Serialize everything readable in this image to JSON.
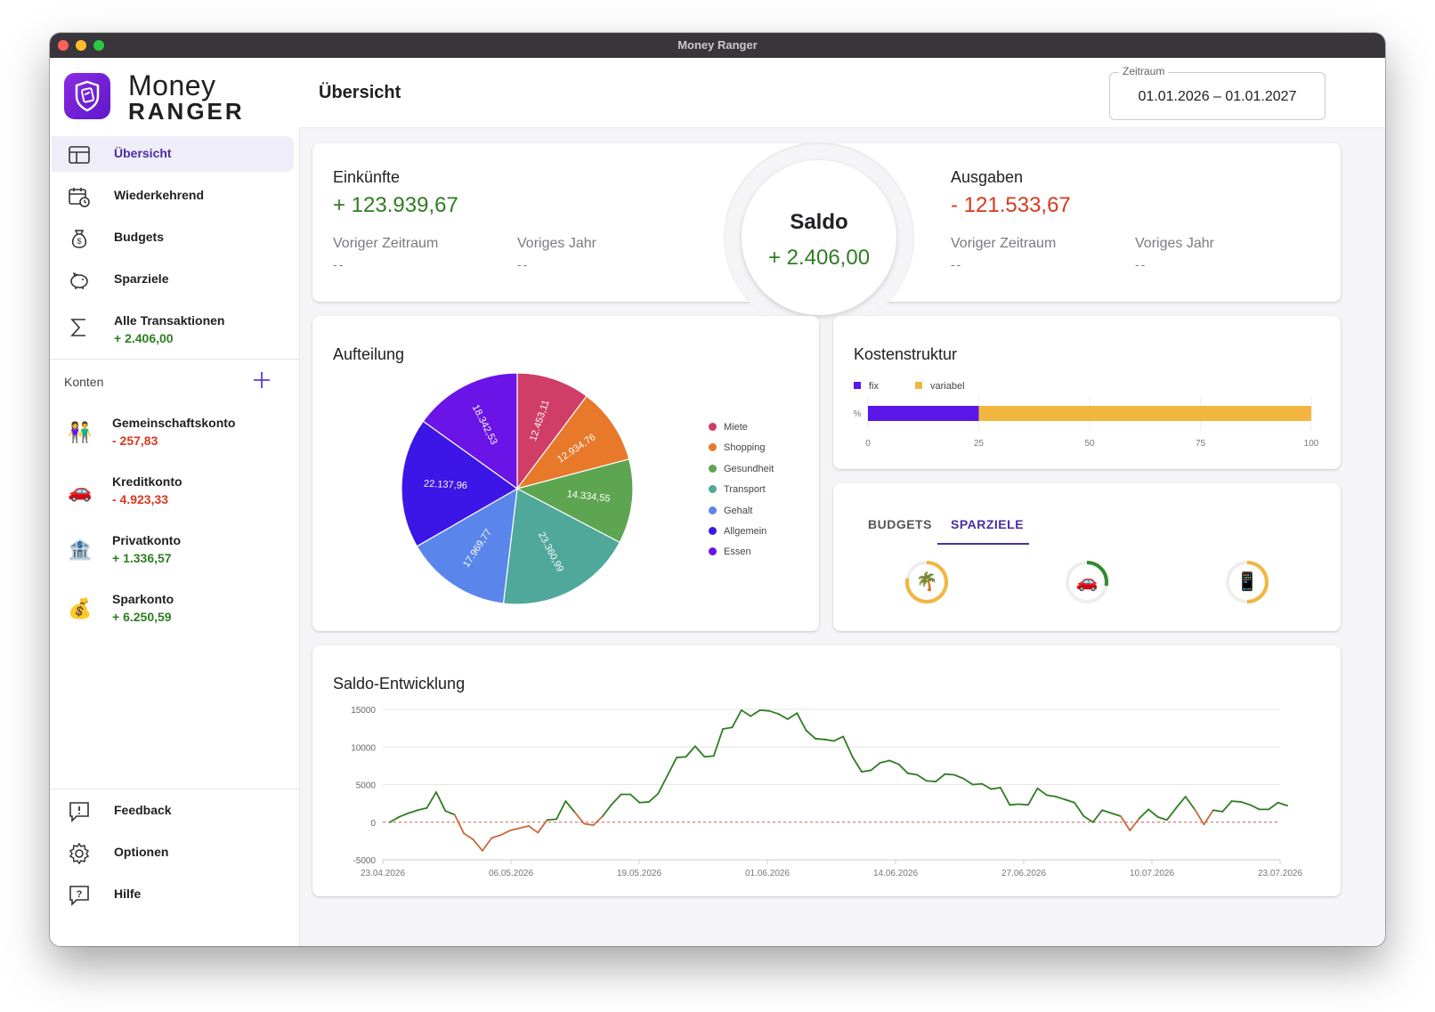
{
  "window": {
    "title": "Money Ranger"
  },
  "logo": {
    "line1": "Money",
    "line2": "RANGER"
  },
  "sidebar": {
    "nav": [
      {
        "label": "Übersicht",
        "icon": "dashboard-icon"
      },
      {
        "label": "Wiederkehrend",
        "icon": "recurring-calendar-icon"
      },
      {
        "label": "Budgets",
        "icon": "money-bag-icon"
      },
      {
        "label": "Sparziele",
        "icon": "piggy-bank-icon"
      },
      {
        "label": "Alle Transaktionen",
        "sub": "+ 2.406,00",
        "icon": "sigma-icon"
      }
    ],
    "accounts_label": "Konten",
    "accounts": [
      {
        "name": "Gemeinschaftskonto",
        "balance": "- 257,83",
        "emoji": "👫",
        "sign": "neg"
      },
      {
        "name": "Kreditkonto",
        "balance": "- 4.923,33",
        "emoji": "🚗",
        "sign": "neg"
      },
      {
        "name": "Privatkonto",
        "balance": "+ 1.336,57",
        "emoji": "🏦",
        "sign": "pos"
      },
      {
        "name": "Sparkonto",
        "balance": "+ 6.250,59",
        "emoji": "💰",
        "sign": "pos"
      }
    ],
    "bottom": [
      {
        "label": "Feedback",
        "icon": "feedback-icon"
      },
      {
        "label": "Optionen",
        "icon": "gear-icon"
      },
      {
        "label": "Hilfe",
        "icon": "help-icon"
      }
    ]
  },
  "header": {
    "title": "Übersicht",
    "period_label": "Zeitraum",
    "period_value": "01.01.2026 – 01.01.2027"
  },
  "summary": {
    "income": {
      "label": "Einkünfte",
      "value": "+ 123.939,67",
      "prev_label": "Voriger Zeitraum",
      "prev_value": "--",
      "year_label": "Voriges Jahr",
      "year_value": "--"
    },
    "saldo": {
      "label": "Saldo",
      "value": "+ 2.406,00"
    },
    "expenses": {
      "label": "Ausgaben",
      "value": "- 121.533,67",
      "prev_label": "Voriger Zeitraum",
      "prev_value": "--",
      "year_label": "Voriges Jahr",
      "year_value": "--"
    }
  },
  "aufteilung": {
    "title": "Aufteilung",
    "legend": [
      {
        "label": "Miete",
        "color": "#d03d67"
      },
      {
        "label": "Shopping",
        "color": "#e8782a"
      },
      {
        "label": "Gesundheit",
        "color": "#5ea552"
      },
      {
        "label": "Transport",
        "color": "#4fa89a"
      },
      {
        "label": "Gehalt",
        "color": "#5a86eb"
      },
      {
        "label": "Allgemein",
        "color": "#3c16e6"
      },
      {
        "label": "Essen",
        "color": "#6a14e8"
      }
    ]
  },
  "kosten": {
    "title": "Kostenstruktur",
    "legend": [
      {
        "label": "fix",
        "color": "#5b16e8"
      },
      {
        "label": "variabel",
        "color": "#f2b640"
      }
    ],
    "axis_label": "%",
    "fix_percent": 25,
    "ticks": [
      "0",
      "25",
      "50",
      "75",
      "100"
    ]
  },
  "goals_card": {
    "tabs": [
      {
        "label": "BUDGETS"
      },
      {
        "label": "SPARZIELE"
      }
    ],
    "active_tab": "SPARZIELE",
    "goals": [
      {
        "emoji": "🌴",
        "progress": 0.78,
        "color": "#f2b640"
      },
      {
        "emoji": "🚗",
        "progress": 0.28,
        "color": "#2e8b2e"
      },
      {
        "emoji": "📱",
        "progress": 0.5,
        "color": "#f2b640"
      }
    ]
  },
  "saldo_chart": {
    "title": "Saldo-Entwicklung"
  },
  "chart_data": [
    {
      "type": "pie",
      "labels": [
        "Miete",
        "Shopping",
        "Gesundheit",
        "Transport",
        "Gehalt",
        "Allgemein",
        "Essen"
      ],
      "values": [
        12453.11,
        12934.76,
        14334.55,
        23360.99,
        17969.77,
        22137.96,
        18342.53
      ],
      "value_labels": [
        "12.453,11",
        "12.934,76",
        "14.334,55",
        "23.360,99",
        "17.969,77",
        "22.137,96",
        "18.342,53"
      ],
      "colors": [
        "#d03d67",
        "#e8782a",
        "#5ea552",
        "#4fa89a",
        "#5a86eb",
        "#3c16e6",
        "#6a14e8"
      ]
    },
    {
      "type": "bar",
      "orientation": "horizontal-stacked",
      "categories": [
        "%"
      ],
      "series": [
        {
          "name": "fix",
          "values": [
            25
          ]
        },
        {
          "name": "variabel",
          "values": [
            75
          ]
        }
      ],
      "xlim": [
        0,
        100
      ]
    },
    {
      "type": "line",
      "x_ticks": [
        "23.04.2026",
        "06.05.2026",
        "19.05.2026",
        "01.06.2026",
        "14.06.2026",
        "27.06.2026",
        "10.07.2026",
        "23.07.2026"
      ],
      "y_ticks": [
        "15000",
        "10000",
        "5000",
        "0",
        "-5000"
      ],
      "ylim": [
        -5000,
        15000
      ],
      "x_start": "2026-04-23",
      "x_end": "2026-07-23",
      "values": [
        0,
        700,
        1200,
        1600,
        1900,
        4000,
        1500,
        1000,
        -1500,
        -2300,
        -3800,
        -2100,
        -1700,
        -1100,
        -800,
        -500,
        -1400,
        300,
        400,
        2800,
        1300,
        -200,
        -400,
        800,
        2400,
        3700,
        3700,
        2600,
        2700,
        3800,
        6200,
        8600,
        8700,
        10100,
        8700,
        8800,
        12400,
        12600,
        14900,
        14100,
        14900,
        14800,
        14400,
        13700,
        14500,
        12200,
        11100,
        11000,
        10800,
        11400,
        8700,
        6700,
        6900,
        7900,
        8200,
        7700,
        6500,
        6300,
        5500,
        5400,
        6400,
        6300,
        5800,
        5000,
        5100,
        4400,
        4600,
        2300,
        2400,
        2300,
        4500,
        3600,
        3400,
        3000,
        2600,
        800,
        0,
        1600,
        1200,
        800,
        -1100,
        500,
        1700,
        700,
        300,
        1900,
        3400,
        1700,
        -300,
        1600,
        1400,
        2800,
        2700,
        2300,
        1700,
        1700,
        2600,
        2200
      ]
    }
  ]
}
